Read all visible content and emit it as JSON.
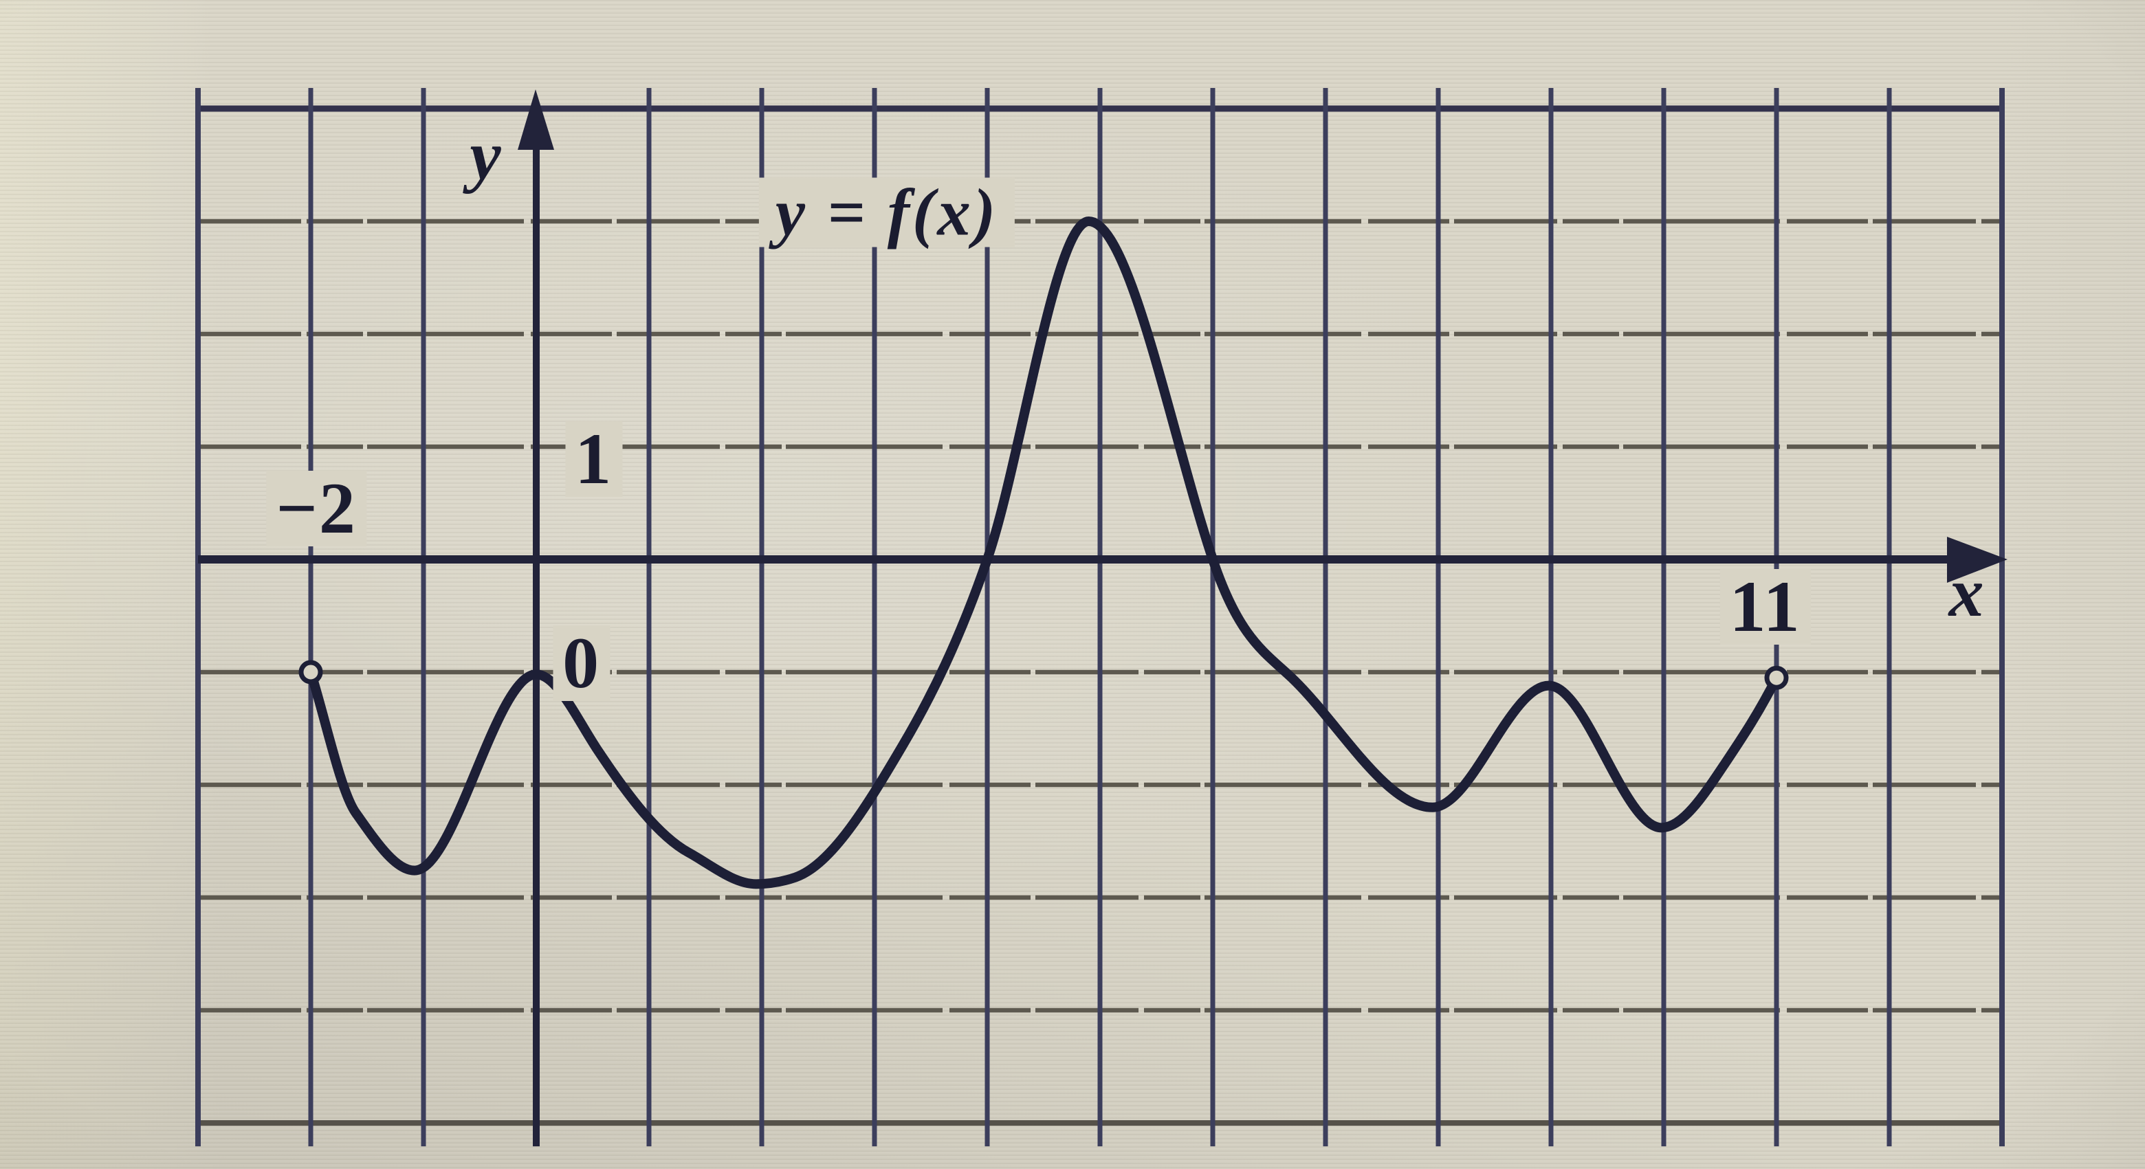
{
  "axes": {
    "x_axis_label": "x",
    "y_axis_label": "y",
    "origin_label": "0"
  },
  "tick_labels": {
    "x_neg2": "−2",
    "x_11": "11",
    "y_1": "1"
  },
  "chart_data": {
    "type": "line",
    "title": "y = f(x)",
    "xlabel": "x",
    "ylabel": "y",
    "xlim": [
      -3,
      13
    ],
    "ylim": [
      -5,
      4
    ],
    "grid": true,
    "grid_step": 1,
    "domain_of_f": [
      -2,
      11
    ],
    "x_ticks_labeled": [
      -2,
      0,
      11
    ],
    "y_ticks_labeled": [
      1
    ],
    "open_endpoints": [
      {
        "x": -2.0,
        "y": -1.0
      },
      {
        "x": 11.0,
        "y": -1.05
      }
    ],
    "key_features": {
      "zeros_of_f": [
        4,
        6
      ],
      "local_minima": [
        {
          "x": -1.1,
          "y": -2.75
        },
        {
          "x": 1.95,
          "y": -2.9
        },
        {
          "x": 8.0,
          "y": -2.2
        },
        {
          "x": 10.0,
          "y": -2.4
        }
      ],
      "local_maxima": [
        {
          "x": 0.0,
          "y": -1.0
        },
        {
          "x": 4.9,
          "y": 3.0
        },
        {
          "x": 9.0,
          "y": -1.1
        }
      ],
      "global_max_value": 3
    },
    "curve_points": [
      {
        "x": -2.0,
        "y": -1.0,
        "m": -3.2
      },
      {
        "x": -1.6,
        "y": -2.25,
        "m": -1.4
      },
      {
        "x": -1.08,
        "y": -2.76,
        "m": 0
      },
      {
        "x": 0.0,
        "y": -1.02,
        "m": 0
      },
      {
        "x": 0.55,
        "y": -1.7,
        "m": -1.5
      },
      {
        "x": 1.35,
        "y": -2.6,
        "m": -0.55
      },
      {
        "x": 1.95,
        "y": -2.88,
        "m": 0
      },
      {
        "x": 2.3,
        "y": -2.82,
        "m": 0.35
      },
      {
        "x": 3.25,
        "y": -1.65,
        "m": 1.7
      },
      {
        "x": 4.0,
        "y": 0.0,
        "m": 2.9
      },
      {
        "x": 4.9,
        "y": 3.0,
        "m": 0
      },
      {
        "x": 6.0,
        "y": 0.0,
        "m": -3.0
      },
      {
        "x": 6.7,
        "y": -1.05,
        "m": -0.95
      },
      {
        "x": 7.95,
        "y": -2.2,
        "m": 0
      },
      {
        "x": 8.98,
        "y": -1.12,
        "m": 0
      },
      {
        "x": 9.98,
        "y": -2.38,
        "m": 0
      },
      {
        "x": 10.55,
        "y": -1.8,
        "m": 1.5
      },
      {
        "x": 11.0,
        "y": -1.05,
        "m": 2.0
      }
    ]
  },
  "colors": {
    "paper": "#d8d4c5",
    "grid_vertical": "#3c3e5c",
    "grid_horizontal": "#5d594f",
    "grid_border_dark": "#32314c",
    "grid_border_bottom": "#56524a",
    "axis": "#22233a",
    "curve": "#1d1f36",
    "text": "#1b1c30"
  }
}
